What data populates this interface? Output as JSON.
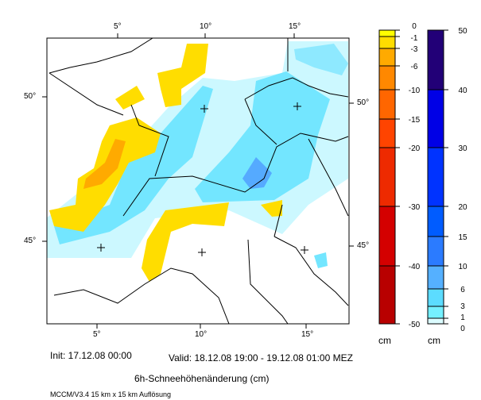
{
  "map": {
    "lon_labels": [
      "5°",
      "10°",
      "15°"
    ],
    "lat_labels": [
      "50°",
      "45°"
    ]
  },
  "legend_negative": {
    "unit": "cm",
    "levels": [
      "0",
      "-1",
      "-3",
      "-6",
      "-10",
      "-15",
      "-20",
      "-30",
      "-40",
      "-50"
    ],
    "colors": [
      "#ffff00",
      "#ffdd00",
      "#ffaa00",
      "#ff8800",
      "#ff6600",
      "#ff4400",
      "#ee2a00",
      "#d40000",
      "#b80000"
    ]
  },
  "legend_positive": {
    "unit": "cm",
    "levels": [
      "50",
      "40",
      "30",
      "20",
      "15",
      "10",
      "6",
      "3",
      "1",
      "0"
    ],
    "colors": [
      "#220077",
      "#0000e6",
      "#0033ff",
      "#005cff",
      "#2b7bff",
      "#55b0ff",
      "#5cdcff",
      "#75f0ff",
      "#dcfcff"
    ]
  },
  "footer": {
    "init": "Init: 17.12.08 00:00",
    "valid": "Valid: 18.12.08 19:00 - 19.12.08 01:00 MEZ",
    "title": "6h-Schneehöhenänderung (cm)",
    "model": "MCCM/V3.4 15 km x 15 km Auflösung"
  }
}
